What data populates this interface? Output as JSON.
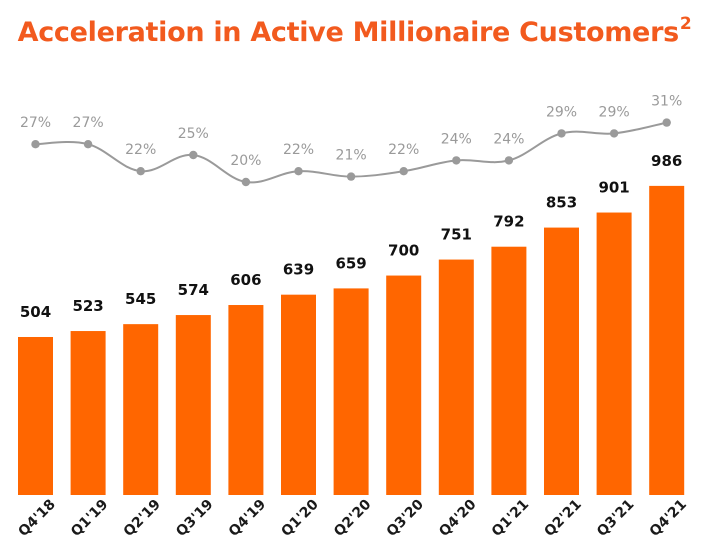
{
  "title": {
    "text": "Acceleration in Active Millionaire Customers",
    "superscript": "2"
  },
  "colors": {
    "title": "#f25a1e",
    "bar": "#ff6600",
    "line": "#9a9a9a",
    "bar_label": "#111111"
  },
  "chart_data": {
    "type": "bar",
    "title": "Acceleration in Active Millionaire Customers",
    "categories": [
      "Q4'18",
      "Q1'19",
      "Q2'19",
      "Q3'19",
      "Q4'19",
      "Q1'20",
      "Q2'20",
      "Q3'20",
      "Q4'20",
      "Q1'21",
      "Q2'21",
      "Q3'21",
      "Q4'21"
    ],
    "series": [
      {
        "type": "bar",
        "values": [
          504,
          523,
          545,
          574,
          606,
          639,
          659,
          700,
          751,
          792,
          853,
          901,
          986
        ],
        "labels": [
          "504",
          "523",
          "545",
          "574",
          "606",
          "639",
          "659",
          "700",
          "751",
          "792",
          "853",
          "901",
          "986"
        ]
      },
      {
        "type": "line",
        "values": [
          27,
          27,
          22,
          25,
          20,
          22,
          21,
          22,
          24,
          24,
          29,
          29,
          31
        ],
        "labels": [
          "27%",
          "27%",
          "22%",
          "25%",
          "20%",
          "22%",
          "21%",
          "22%",
          "24%",
          "24%",
          "29%",
          "29%",
          "31%"
        ]
      }
    ],
    "xlabel": "",
    "ylabel": "",
    "grid": false,
    "legend": "none"
  }
}
